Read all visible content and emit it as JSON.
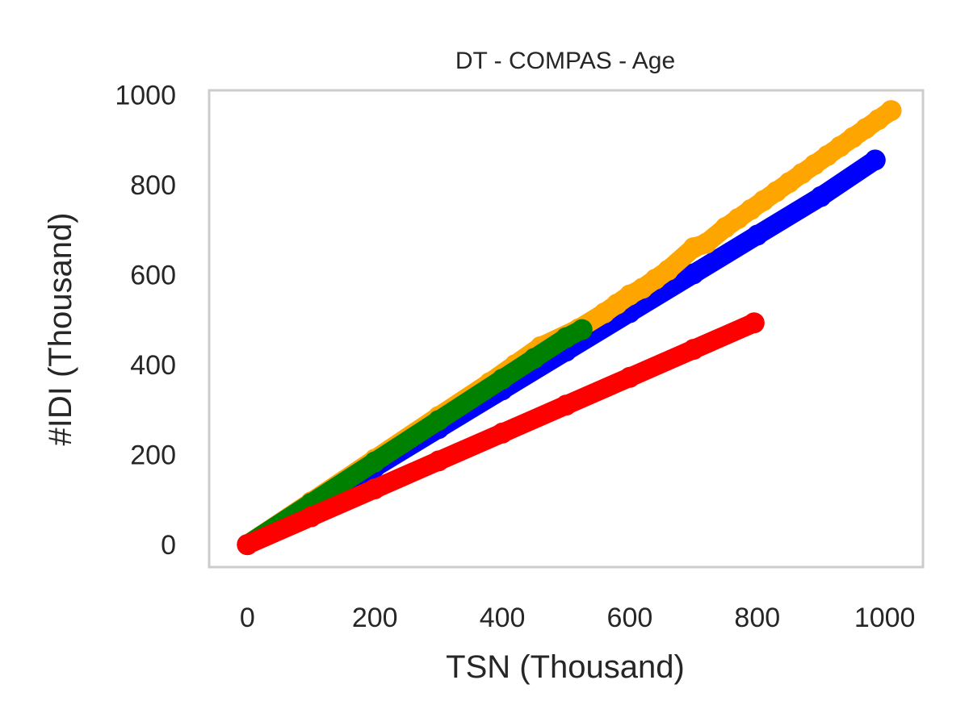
{
  "chart_data": {
    "type": "scatter",
    "title": "DT - COMPAS - Age",
    "xlabel": "TSN (Thousand)",
    "ylabel": "#IDI (Thousand)",
    "xlim": [
      -60,
      1060
    ],
    "ylim": [
      -50,
      1010
    ],
    "x_ticks": [
      "0",
      "200",
      "400",
      "600",
      "800",
      "1000"
    ],
    "y_ticks": [
      "0",
      "200",
      "400",
      "600",
      "800",
      "1000"
    ],
    "grid": false,
    "legend": "none",
    "series": [
      {
        "color": "#0000ff",
        "points": [
          [
            0,
            0
          ],
          [
            100,
            86
          ],
          [
            200,
            172
          ],
          [
            300,
            258
          ],
          [
            400,
            344
          ],
          [
            500,
            430
          ],
          [
            600,
            516
          ],
          [
            700,
            602
          ],
          [
            800,
            688
          ],
          [
            900,
            774
          ],
          [
            985,
            855
          ]
        ]
      },
      {
        "color": "#ffa500",
        "points": [
          [
            0,
            0
          ],
          [
            100,
            95
          ],
          [
            200,
            190
          ],
          [
            300,
            285
          ],
          [
            380,
            360
          ],
          [
            420,
            400
          ],
          [
            460,
            440
          ],
          [
            520,
            480
          ],
          [
            560,
            515
          ],
          [
            580,
            535
          ],
          [
            600,
            555
          ],
          [
            620,
            570
          ],
          [
            640,
            590
          ],
          [
            660,
            610
          ],
          [
            700,
            660
          ],
          [
            720,
            670
          ],
          [
            750,
            705
          ],
          [
            770,
            725
          ],
          [
            790,
            745
          ],
          [
            810,
            765
          ],
          [
            830,
            785
          ],
          [
            850,
            805
          ],
          [
            870,
            825
          ],
          [
            890,
            845
          ],
          [
            910,
            865
          ],
          [
            930,
            885
          ],
          [
            950,
            905
          ],
          [
            970,
            925
          ],
          [
            990,
            945
          ],
          [
            1010,
            965
          ]
        ]
      },
      {
        "color": "#008000",
        "points": [
          [
            0,
            0
          ],
          [
            100,
            92
          ],
          [
            200,
            184
          ],
          [
            300,
            276
          ],
          [
            400,
            368
          ],
          [
            450,
            414
          ],
          [
            500,
            460
          ],
          [
            525,
            478
          ]
        ]
      },
      {
        "color": "#ff0000",
        "points": [
          [
            0,
            0
          ],
          [
            100,
            62
          ],
          [
            200,
            124
          ],
          [
            300,
            186
          ],
          [
            400,
            248
          ],
          [
            500,
            310
          ],
          [
            600,
            372
          ],
          [
            700,
            434
          ],
          [
            795,
            493
          ]
        ]
      }
    ]
  }
}
